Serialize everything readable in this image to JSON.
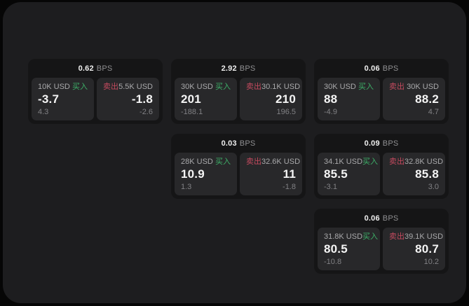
{
  "labels": {
    "buy": "买入",
    "sell": "卖出",
    "bps_unit": "BPS"
  },
  "colors": {
    "buy_green": "#3daf68",
    "sell_red": "#c44a5e",
    "panel_bg": "#1d1d1f",
    "card_bg": "#151516",
    "tile_bg": "#28282a"
  },
  "cards": [
    {
      "bps": "0.62",
      "buy": {
        "amount": "10K USD",
        "value": "-3.7",
        "change": "4.3"
      },
      "sell": {
        "amount": "5.5K USD",
        "value": "-1.8",
        "change": "-2.6"
      }
    },
    {
      "bps": "2.92",
      "buy": {
        "amount": "30K USD",
        "value": "201",
        "change": "-188.1"
      },
      "sell": {
        "amount": "30.1K USD",
        "value": "210",
        "change": "196.5"
      }
    },
    {
      "bps": "0.06",
      "buy": {
        "amount": "30K USD",
        "value": "88",
        "change": "-4.9"
      },
      "sell": {
        "amount": "30K USD",
        "value": "88.2",
        "change": "4.7"
      }
    },
    {
      "bps": "0.03",
      "buy": {
        "amount": "28K USD",
        "value": "10.9",
        "change": "1.3"
      },
      "sell": {
        "amount": "32.6K USD",
        "value": "11",
        "change": "-1.8"
      }
    },
    {
      "bps": "0.09",
      "buy": {
        "amount": "34.1K USD",
        "value": "85.5",
        "change": "-3.1"
      },
      "sell": {
        "amount": "32.8K USD",
        "value": "85.8",
        "change": "3.0"
      }
    },
    {
      "bps": "0.06",
      "buy": {
        "amount": "31.8K USD",
        "value": "80.5",
        "change": "-10.8"
      },
      "sell": {
        "amount": "39.1K USD",
        "value": "80.7",
        "change": "10.2"
      }
    }
  ]
}
